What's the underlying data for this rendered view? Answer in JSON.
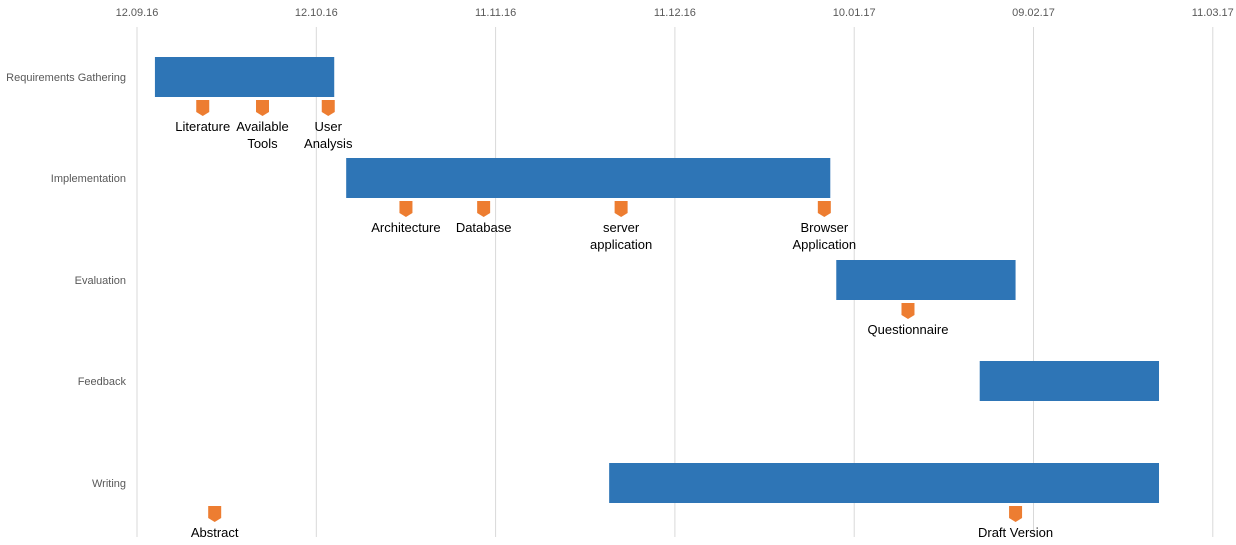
{
  "chart_data": {
    "type": "gantt",
    "title": "",
    "x_axis": {
      "ticks": [
        "12.09.16",
        "12.10.16",
        "11.11.16",
        "11.12.16",
        "10.01.17",
        "09.02.17",
        "11.03.17"
      ],
      "grid": true
    },
    "categories": [
      "Requirements Gathering",
      "Implementation",
      "Evaluation",
      "Feedback",
      "Writing"
    ],
    "tasks": [
      {
        "category": "Requirements Gathering",
        "start": "2016-09-15",
        "end": "2016-10-15"
      },
      {
        "category": "Implementation",
        "start": "2016-10-17",
        "end": "2017-01-06"
      },
      {
        "category": "Evaluation",
        "start": "2017-01-07",
        "end": "2017-02-06"
      },
      {
        "category": "Feedback",
        "start": "2017-01-31",
        "end": "2017-03-02"
      },
      {
        "category": "Writing",
        "start": "2016-11-30",
        "end": "2017-03-02"
      }
    ],
    "milestones": [
      {
        "category": "Requirements Gathering",
        "date": "2016-09-23",
        "label": [
          "Literature"
        ]
      },
      {
        "category": "Requirements Gathering",
        "date": "2016-10-03",
        "label": [
          "Available",
          "Tools"
        ]
      },
      {
        "category": "Requirements Gathering",
        "date": "2016-10-14",
        "label": [
          "User",
          "Analysis"
        ]
      },
      {
        "category": "Implementation",
        "date": "2016-10-27",
        "label": [
          "Architecture"
        ]
      },
      {
        "category": "Implementation",
        "date": "2016-11-09",
        "label": [
          "Database"
        ]
      },
      {
        "category": "Implementation",
        "date": "2016-12-02",
        "label": [
          "server",
          "application"
        ]
      },
      {
        "category": "Implementation",
        "date": "2017-01-05",
        "label": [
          "Browser",
          "Application"
        ]
      },
      {
        "category": "Evaluation",
        "date": "2017-01-19",
        "label": [
          "Questionnaire"
        ]
      },
      {
        "category": "Writing",
        "date": "2016-09-25",
        "label": [
          "Abstract"
        ]
      },
      {
        "category": "Writing",
        "date": "2017-02-06",
        "label": [
          "Draft Version"
        ]
      }
    ],
    "colors": {
      "bar": "#2e75b6",
      "milestone": "#ed7d31",
      "grid": "#d9d9d9"
    }
  }
}
